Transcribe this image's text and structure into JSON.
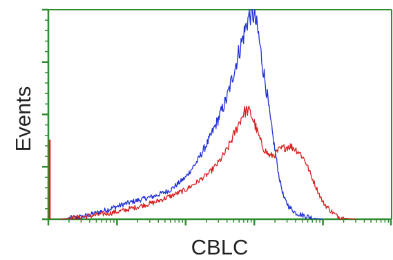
{
  "chart_data": {
    "type": "line",
    "xlabel": "CBLC",
    "ylabel": "Events",
    "x_scale": "log",
    "xlim": [
      1,
      100000
    ],
    "ylim": [
      0,
      100
    ],
    "grid": false,
    "axis_color": "#2e8b2e",
    "series": [
      {
        "color": "#1f2fd6",
        "x": [
          1.5,
          2,
          3,
          5,
          8,
          12,
          20,
          35,
          60,
          100,
          150,
          220,
          300,
          400,
          500,
          600,
          700,
          800,
          900,
          1000,
          1150,
          1300,
          1500,
          1700,
          2000,
          2300,
          2700,
          3200,
          4000,
          5000,
          6500,
          8000,
          10000
        ],
        "values": [
          0,
          0.5,
          1,
          3,
          5,
          7,
          9,
          11,
          14,
          20,
          28,
          38,
          48,
          58,
          70,
          80,
          88,
          95,
          99,
          97,
          88,
          75,
          62,
          48,
          33,
          20,
          10,
          6,
          3,
          2,
          1,
          0.3,
          0
        ]
      },
      {
        "color": "#d61f1f",
        "x": [
          1.5,
          2,
          3,
          5,
          8,
          12,
          20,
          35,
          60,
          100,
          150,
          220,
          300,
          400,
          500,
          600,
          700,
          800,
          900,
          1000,
          1150,
          1300,
          1500,
          1700,
          2000,
          2300,
          2700,
          3200,
          3800,
          4500,
          5500,
          6500,
          8000,
          10000,
          13000,
          16000,
          20000,
          30000
        ],
        "values": [
          0,
          0.5,
          1,
          2,
          3,
          4,
          6,
          8,
          11,
          14,
          18,
          22,
          27,
          33,
          40,
          46,
          51,
          52,
          50,
          46,
          40,
          35,
          32,
          30,
          31,
          33,
          34,
          35,
          34,
          32,
          28,
          22,
          15,
          8,
          4,
          1.5,
          0.5,
          0
        ]
      }
    ],
    "left_edge_spike": {
      "color": "#d61f1f",
      "value": 38
    }
  }
}
